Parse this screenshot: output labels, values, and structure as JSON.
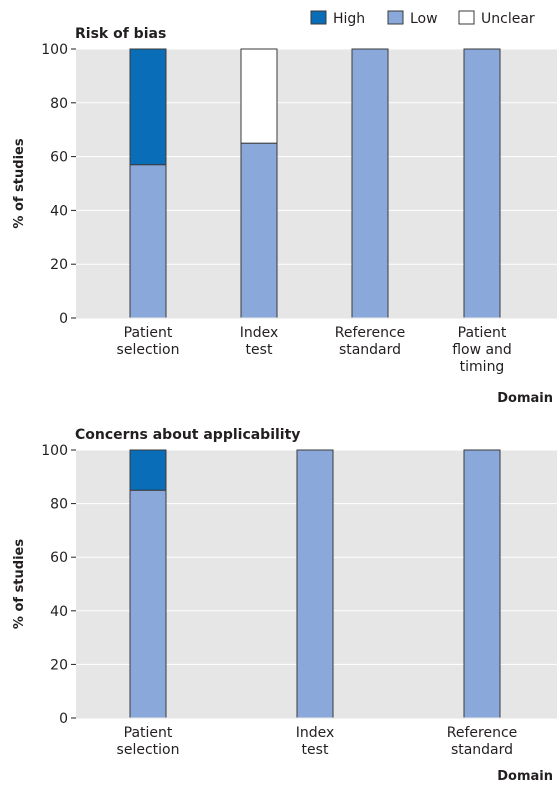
{
  "legend": [
    {
      "label": "High",
      "color": "#0a6db8"
    },
    {
      "label": "Low",
      "color": "#8aa9da"
    },
    {
      "label": "Unclear",
      "color": "#ffffff"
    }
  ],
  "colors": {
    "panel_bg": "#e6e6e6",
    "gridline": "#ffffff",
    "bar_stroke": "#3a3a3a"
  },
  "chart_data": [
    {
      "type": "bar",
      "stacked": true,
      "title": "Risk of bias",
      "xlabel": "Domain",
      "ylabel": "% of studies",
      "ylim": [
        0,
        100
      ],
      "yticks": [
        0,
        20,
        40,
        60,
        80,
        100
      ],
      "categories": [
        "Patient selection",
        "Index test",
        "Reference standard",
        "Patient flow and timing"
      ],
      "category_lines": [
        [
          "Patient",
          "selection"
        ],
        [
          "Index",
          "test"
        ],
        [
          "Reference",
          "standard"
        ],
        [
          "Patient",
          "flow and",
          "timing"
        ]
      ],
      "series": [
        {
          "name": "Low",
          "values": [
            57,
            65,
            100,
            100
          ]
        },
        {
          "name": "High",
          "values": [
            43,
            0,
            0,
            0
          ]
        },
        {
          "name": "Unclear",
          "values": [
            0,
            35,
            0,
            0
          ]
        }
      ],
      "grid": true,
      "legend_position": "top-right"
    },
    {
      "type": "bar",
      "stacked": true,
      "title": "Concerns about applicability",
      "xlabel": "Domain",
      "ylabel": "% of studies",
      "ylim": [
        0,
        100
      ],
      "yticks": [
        0,
        20,
        40,
        60,
        80,
        100
      ],
      "categories": [
        "Patient selection",
        "Index test",
        "Reference standard"
      ],
      "category_lines": [
        [
          "Patient",
          "selection"
        ],
        [
          "Index",
          "test"
        ],
        [
          "Reference",
          "standard"
        ]
      ],
      "series": [
        {
          "name": "Low",
          "values": [
            85,
            100,
            100
          ]
        },
        {
          "name": "High",
          "values": [
            15,
            0,
            0
          ]
        },
        {
          "name": "Unclear",
          "values": [
            0,
            0,
            0
          ]
        }
      ],
      "grid": true
    }
  ]
}
